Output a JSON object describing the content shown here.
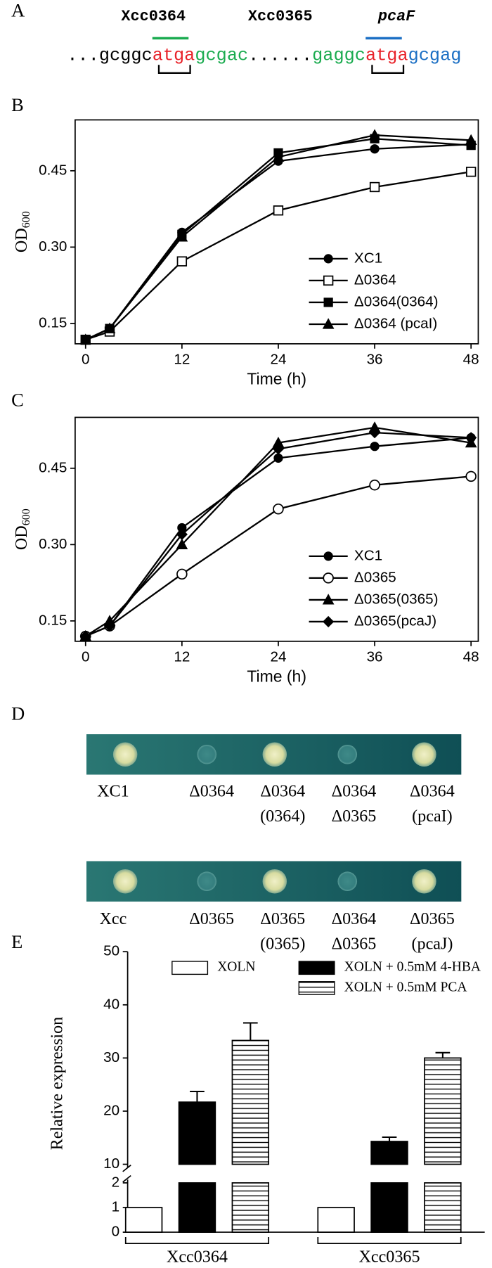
{
  "panel_labels": [
    "A",
    "B",
    "C",
    "D",
    "E"
  ],
  "panel_a": {
    "genes": [
      {
        "text": "Xcc0364",
        "color": "#000000"
      },
      {
        "text": "Xcc0365",
        "color": "#1aab4f"
      },
      {
        "text": "pcaF",
        "color": "#1b6fc4"
      }
    ],
    "sequence": [
      {
        "text": "...gcggc",
        "color": "#000000"
      },
      {
        "text": "atga",
        "color": "#e8232a"
      },
      {
        "text": "gcgac",
        "color": "#1aab4f"
      },
      {
        "text": "......",
        "color": "#000000"
      },
      {
        "text": "gaggc",
        "color": "#1aab4f"
      },
      {
        "text": "atga",
        "color": "#e8232a"
      },
      {
        "text": "gcgag",
        "color": "#1b6fc4"
      }
    ]
  },
  "chart_data": [
    {
      "type": "line",
      "x": [
        0,
        3,
        12,
        24,
        36,
        48
      ],
      "xlim": [
        -1.3,
        48.9
      ],
      "xticks": [
        0,
        12,
        24,
        36,
        48
      ],
      "ylim": [
        0.11,
        0.55
      ],
      "yticks": [
        0.15,
        {
          "value": 0.3,
          "label": "0.30"
        },
        0.45
      ],
      "x_label": "Time (h)",
      "y_label": "OD",
      "y_label_sub": "600",
      "legend": "center-right",
      "series": [
        {
          "name": "XC1",
          "color": "#000000",
          "marker": "circle",
          "values": [
            0.118,
            0.14,
            0.329,
            0.469,
            0.493,
            0.502
          ]
        },
        {
          "name": "Δ0364",
          "color": "#000000",
          "marker": "square-open",
          "values": [
            0.118,
            0.134,
            0.272,
            0.372,
            0.418,
            0.448
          ]
        },
        {
          "name": "Δ0364(0364)",
          "color": "#000000",
          "marker": "square",
          "values": [
            0.118,
            0.14,
            0.325,
            0.485,
            0.513,
            0.5
          ]
        },
        {
          "name": "Δ0364 (pcaI)",
          "color": "#000000",
          "marker": "triangle",
          "values": [
            0.118,
            0.14,
            0.32,
            0.477,
            0.52,
            0.51
          ]
        }
      ]
    },
    {
      "type": "line",
      "x": [
        0,
        3,
        12,
        24,
        36,
        48
      ],
      "xlim": [
        -1.3,
        48.9
      ],
      "xticks": [
        0,
        12,
        24,
        36,
        48
      ],
      "ylim": [
        0.11,
        0.55
      ],
      "yticks": [
        0.15,
        {
          "value": 0.3,
          "label": "0.30"
        },
        0.45
      ],
      "x_label": "Time (h)",
      "y_label": "OD",
      "y_label_sub": "600",
      "legend": "center-right",
      "series": [
        {
          "name": "XC1",
          "color": "#000000",
          "marker": "circle",
          "values": [
            0.12,
            0.14,
            0.333,
            0.47,
            0.493,
            0.51
          ]
        },
        {
          "name": "Δ0365",
          "color": "#000000",
          "marker": "circle-open",
          "values": [
            0.12,
            0.14,
            0.242,
            0.37,
            0.417,
            0.434
          ]
        },
        {
          "name": "Δ0365(0365)",
          "color": "#000000",
          "marker": "triangle",
          "values": [
            0.12,
            0.15,
            0.3,
            0.5,
            0.53,
            0.5
          ]
        },
        {
          "name": "Δ0365(pcaJ)",
          "color": "#000000",
          "marker": "diamond",
          "values": [
            0.12,
            0.14,
            0.32,
            0.488,
            0.52,
            0.51
          ]
        }
      ]
    },
    {
      "type": "bar",
      "categories": [
        "Xcc0364",
        "Xcc0365"
      ],
      "ylim": [
        0,
        50
      ],
      "y_break": [
        2,
        10
      ],
      "yticks": [
        0,
        1,
        2,
        10,
        20,
        30,
        40,
        50
      ],
      "y_label": "Relative expression",
      "series": [
        {
          "name": "XOLN",
          "fill": "white",
          "values": [
            1,
            1
          ]
        },
        {
          "name": "XOLN + 0.5mM 4-HBA",
          "fill": "black",
          "values": [
            21.7,
            14.3
          ],
          "errors": [
            2.0,
            0.8
          ]
        },
        {
          "name": "XOLN + 0.5mM PCA",
          "fill": "hatch",
          "values": [
            33.3,
            30
          ],
          "errors": [
            3.3,
            1.0
          ]
        }
      ]
    }
  ],
  "panel_d": {
    "rows": [
      [
        [
          "XC1"
        ],
        [
          "Δ0364"
        ],
        [
          "Δ0364",
          "(0364)"
        ],
        [
          "Δ0364",
          "Δ0365"
        ],
        [
          "Δ0364",
          "(pcaI)"
        ]
      ],
      [
        [
          "Xcc"
        ],
        [
          "Δ0365"
        ],
        [
          "Δ0365",
          "(0365)"
        ],
        [
          "Δ0364",
          "Δ0365"
        ],
        [
          "Δ0365",
          "(pcaJ)"
        ]
      ]
    ],
    "growth": [
      [
        true,
        false,
        true,
        false,
        true
      ],
      [
        true,
        false,
        true,
        false,
        true
      ]
    ]
  }
}
